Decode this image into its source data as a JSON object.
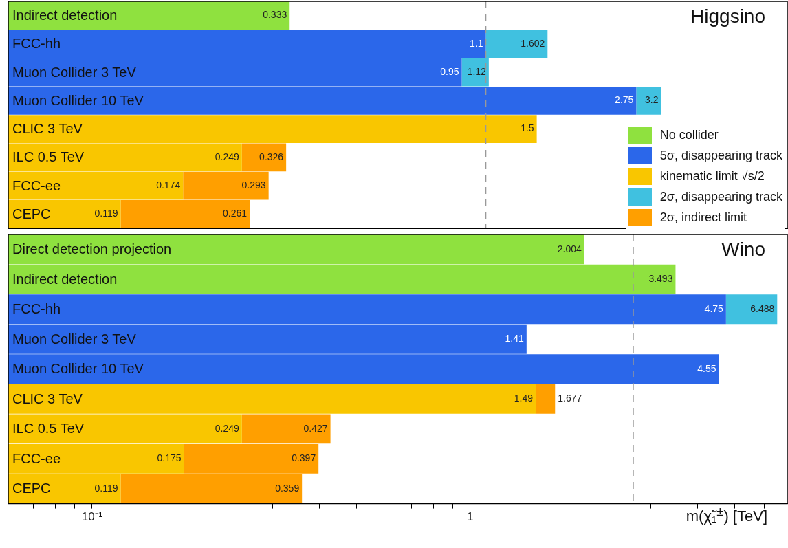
{
  "chart_data": [
    {
      "type": "bar",
      "orientation": "horizontal",
      "stacked": true,
      "log": "x",
      "title": "Higgsino",
      "categories": [
        "Indirect detection",
        "FCC-hh",
        "Muon Collider 3 TeV",
        "Muon Collider 10 TeV",
        "CLIC 3 TeV",
        "ILC 0.5 TeV",
        "FCC-ee",
        "CEPC"
      ],
      "series": [
        {
          "name": "No collider",
          "color": "#8fe13f",
          "values": [
            0.333,
            null,
            null,
            null,
            null,
            null,
            null,
            null
          ],
          "value_labels": [
            "0.333",
            null,
            null,
            null,
            null,
            null,
            null,
            null
          ]
        },
        {
          "name": "5σ, disappearing track",
          "color": "#2b67ea",
          "values": [
            null,
            1.1,
            0.95,
            2.75,
            null,
            null,
            null,
            null
          ],
          "value_labels": [
            null,
            "1.1",
            "0.95",
            "2.75",
            null,
            null,
            null,
            null
          ]
        },
        {
          "name": "kinematic limit √s/2",
          "color": "#f9c600",
          "values": [
            null,
            null,
            null,
            null,
            1.5,
            0.249,
            0.174,
            0.119
          ],
          "value_labels": [
            null,
            null,
            null,
            null,
            "1.5",
            "0.249",
            "0.174",
            "0.119"
          ]
        },
        {
          "name": "2σ, disappearing track",
          "color": "#40c1e0",
          "values": [
            null,
            0.502,
            0.17,
            0.45,
            null,
            null,
            null,
            null
          ]
        },
        {
          "name": "2σ, indirect limit",
          "color": "#ff9f00",
          "values": [
            null,
            null,
            null,
            null,
            null,
            0.077,
            0.119,
            0.142
          ]
        }
      ],
      "totals": [
        null,
        "1.602",
        "1.12",
        "3.2",
        null,
        "0.326",
        "0.293",
        "0.261"
      ],
      "xlim": [
        0.06,
        6.9
      ],
      "tick_labels": "y",
      "legend": "bottom right",
      "ref_lines": [
        {
          "axis": "x",
          "value": 1.1,
          "color": "#999999",
          "line_style": "dashed"
        }
      ]
    },
    {
      "type": "bar",
      "orientation": "horizontal",
      "stacked": true,
      "log": "x",
      "title": "Wino",
      "categories": [
        "Direct detection projection",
        "Indirect detection",
        "FCC-hh",
        "Muon Collider 3 TeV",
        "Muon Collider 10 TeV",
        "CLIC 3 TeV",
        "ILC 0.5 TeV",
        "FCC-ee",
        "CEPC"
      ],
      "series": [
        {
          "color": "#8fe13f",
          "values": [
            2.004,
            3.493,
            null,
            null,
            null,
            null,
            null,
            null,
            null
          ],
          "value_labels": [
            "2.004",
            "3.493",
            null,
            null,
            null,
            null,
            null,
            null,
            null
          ]
        },
        {
          "color": "#2b67ea",
          "values": [
            null,
            null,
            4.75,
            1.41,
            4.55,
            null,
            null,
            null,
            null
          ],
          "value_labels": [
            null,
            null,
            "4.75",
            "1.41",
            "4.55",
            null,
            null,
            null,
            null
          ]
        },
        {
          "color": "#f9c600",
          "values": [
            null,
            null,
            null,
            null,
            null,
            1.49,
            0.249,
            0.175,
            0.119
          ],
          "value_labels": [
            null,
            null,
            null,
            null,
            null,
            "1.49",
            "0.249",
            "0.175",
            "0.119"
          ]
        },
        {
          "color": "#40c1e0",
          "values": [
            null,
            null,
            1.738,
            null,
            null,
            null,
            null,
            null,
            null
          ]
        },
        {
          "color": "#ff9f00",
          "values": [
            null,
            null,
            null,
            null,
            null,
            0.187,
            0.178,
            0.222,
            0.24
          ]
        }
      ],
      "totals": [
        null,
        null,
        "6.488",
        null,
        null,
        "1.677",
        "0.427",
        "0.397",
        "0.359"
      ],
      "xlabel": "m(χ̃₁$^{±}$) [TeV]",
      "xlim": [
        0.06,
        6.9
      ],
      "xticks": [
        {
          "value": 0.07,
          "label": null
        },
        {
          "value": 0.08,
          "label": null
        },
        {
          "value": 0.09,
          "label": null
        },
        {
          "value": 0.1,
          "label": "10⁻¹"
        },
        {
          "value": 0.2,
          "label": null
        },
        {
          "value": 0.3,
          "label": null
        },
        {
          "value": 0.4,
          "label": null
        },
        {
          "value": 0.5,
          "label": null
        },
        {
          "value": 0.6,
          "label": null
        },
        {
          "value": 0.7,
          "label": null
        },
        {
          "value": 0.8,
          "label": null
        },
        {
          "value": 0.9,
          "label": null
        },
        {
          "value": 1,
          "label": "1"
        },
        {
          "value": 2,
          "label": null
        },
        {
          "value": 3,
          "label": null
        },
        {
          "value": 4,
          "label": null
        },
        {
          "value": 5,
          "label": null
        },
        {
          "value": 6,
          "label": null
        }
      ],
      "ref_lines": [
        {
          "axis": "x",
          "value": 2.7,
          "color": "#999999",
          "line_style": "dashed"
        }
      ]
    }
  ]
}
